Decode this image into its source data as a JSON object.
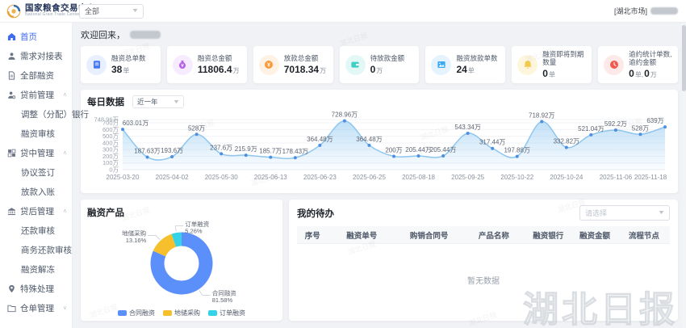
{
  "header": {
    "logo_title": "国家粮食交易中心",
    "logo_subtitle": "National Grain Trade Center",
    "market_select": "全部",
    "region_label": "[湖北市场]"
  },
  "sidebar": {
    "items": [
      {
        "label": "首页",
        "icon": "home-icon",
        "active": true
      },
      {
        "label": "需求对接表",
        "icon": "user-icon"
      },
      {
        "label": "全部融资",
        "icon": "file-icon"
      },
      {
        "label": "贷前管理",
        "icon": "user-gear-icon",
        "expanded": true,
        "children": [
          "调整（分配）银行",
          "融资审核"
        ]
      },
      {
        "label": "贷中管理",
        "icon": "grid-icon",
        "expanded": true,
        "children": [
          "协议签订",
          "放款入账"
        ]
      },
      {
        "label": "贷后管理",
        "icon": "bank-icon",
        "expanded": true,
        "children": [
          "还款审核",
          "商务还款审核",
          "融资解冻"
        ]
      },
      {
        "label": "特殊处理",
        "icon": "pin-icon"
      },
      {
        "label": "仓单管理",
        "icon": "folder-icon",
        "expanded": false,
        "children": []
      }
    ]
  },
  "welcome": {
    "text": "欢迎回来，"
  },
  "stats": [
    {
      "label": "融资总单数",
      "value": "38",
      "unit": "单",
      "icon": "document-icon",
      "color": "#4678f0",
      "bg": "#e8efff"
    },
    {
      "label": "融资总金额",
      "value": "11806.4",
      "unit": "万",
      "icon": "money-bag-icon",
      "color": "#b75fe8",
      "bg": "#f6ebff"
    },
    {
      "label": "放款总金额",
      "value": "7018.34",
      "unit": "万",
      "icon": "coin-icon",
      "color": "#f79b3c",
      "bg": "#fff1e3"
    },
    {
      "label": "待放款金额",
      "value": "0",
      "unit": "万",
      "icon": "wallet-icon",
      "color": "#3ecfc5",
      "bg": "#e3f8f6"
    },
    {
      "label": "融资放款单数",
      "value": "24",
      "unit": "单",
      "icon": "image-icon",
      "color": "#38a9f2",
      "bg": "#e4f3fe"
    },
    {
      "label": "融资即将到期数量",
      "value": "0",
      "unit": "单",
      "icon": "bell-icon",
      "color": "#f2c94c",
      "bg": "#fdf6dd"
    },
    {
      "label": "逾约统计单数,逾约金额",
      "value": "0",
      "unit": "单,",
      "value2": "0",
      "unit2": "万",
      "icon": "clock-icon",
      "color": "#ee5b50",
      "bg": "#fde9e7"
    }
  ],
  "chart_data": [
    {
      "type": "line",
      "title": "每日数据",
      "range_select": "近一年",
      "unit": "万",
      "values": [
        603.01,
        187.63,
        193.6,
        528,
        237.6,
        215.9,
        185.7,
        178.43,
        364.48,
        728.96,
        364.48,
        200,
        205.44,
        205.44,
        543.34,
        317.44,
        197.88,
        718.92,
        332.82,
        521.04,
        592.2,
        528,
        639
      ],
      "point_label_suffix": "万",
      "x_tick_dates": [
        "2025-03-20",
        "2025-04-02",
        "2025-05-30",
        "2025-06-13",
        "2025-06-23",
        "2025-06-25",
        "2025-08-18",
        "2025-09-25",
        "2025-10-22",
        "2025-10-24",
        "2025-11-06",
        "2025-11-18"
      ],
      "x_tick_every": 2,
      "y_ticks": [
        0,
        100,
        200,
        300,
        400,
        500,
        600,
        700,
        748.96
      ],
      "y_tick_suffix": "万",
      "ylim": [
        0,
        748.96
      ],
      "grid": true,
      "line_color": "#8ec6ee",
      "point_color": "#4e8fe0",
      "area_color": "#8dc6f1"
    },
    {
      "type": "pie",
      "title": "融资产品",
      "slices": [
        {
          "name": "合同融资",
          "pct": 81.58,
          "color": "#5B8FF9"
        },
        {
          "name": "地储采购",
          "pct": 13.16,
          "color": "#F6C02D"
        },
        {
          "name": "订单融资",
          "pct": 5.26,
          "color": "#35D3E7"
        }
      ],
      "legend_position": "bottom"
    }
  ],
  "todo_panel": {
    "title": "我的待办",
    "filter_placeholder": "请选择",
    "columns": [
      "序号",
      "融资单号",
      "购销合同号",
      "产品名称",
      "融资银行",
      "融资金额",
      "流程节点"
    ],
    "empty_text": "暂无数据",
    "rows": []
  },
  "watermark": {
    "text": "湖北日报"
  }
}
